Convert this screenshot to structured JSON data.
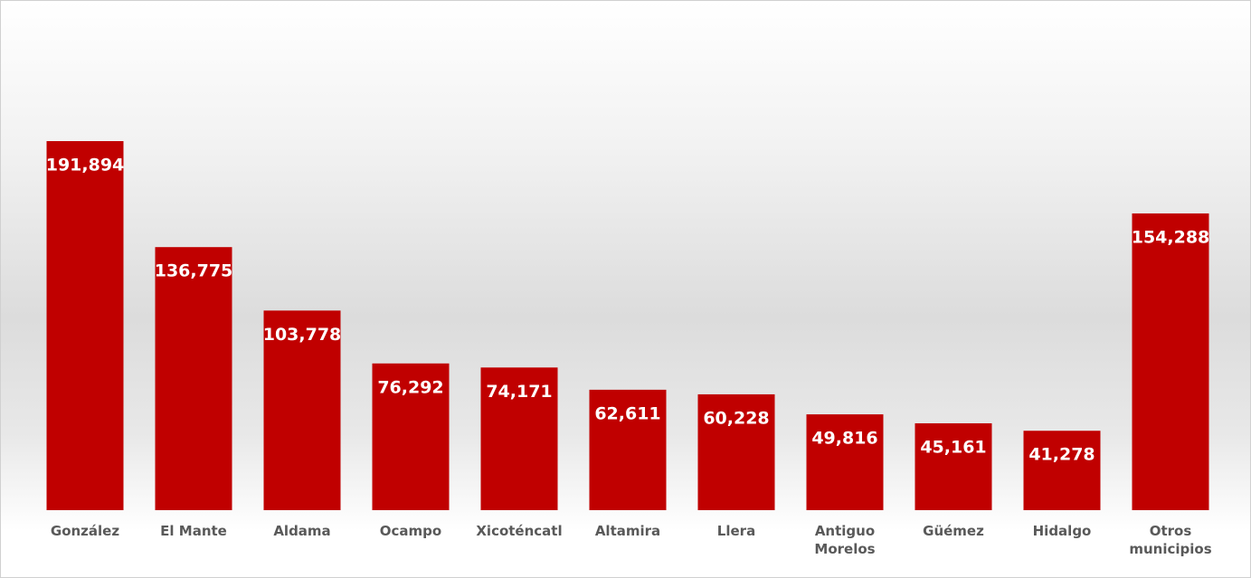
{
  "chart_data": {
    "type": "bar",
    "categories": [
      "González",
      "El Mante",
      "Aldama",
      "Ocampo",
      "Xicoténcatl",
      "Altamira",
      "Llera",
      "Antiguo Morelos",
      "Güémez",
      "Hidalgo",
      "Otros municipios"
    ],
    "values": [
      191894,
      136775,
      103778,
      76292,
      74171,
      62611,
      60228,
      49816,
      45161,
      41278,
      154288
    ],
    "value_labels": [
      "191,894",
      "136,775",
      "103,778",
      "76,292",
      "74,171",
      "62,611",
      "60,228",
      "49,816",
      "45,161",
      "41,278",
      "154,288"
    ],
    "color": "#c00000"
  }
}
